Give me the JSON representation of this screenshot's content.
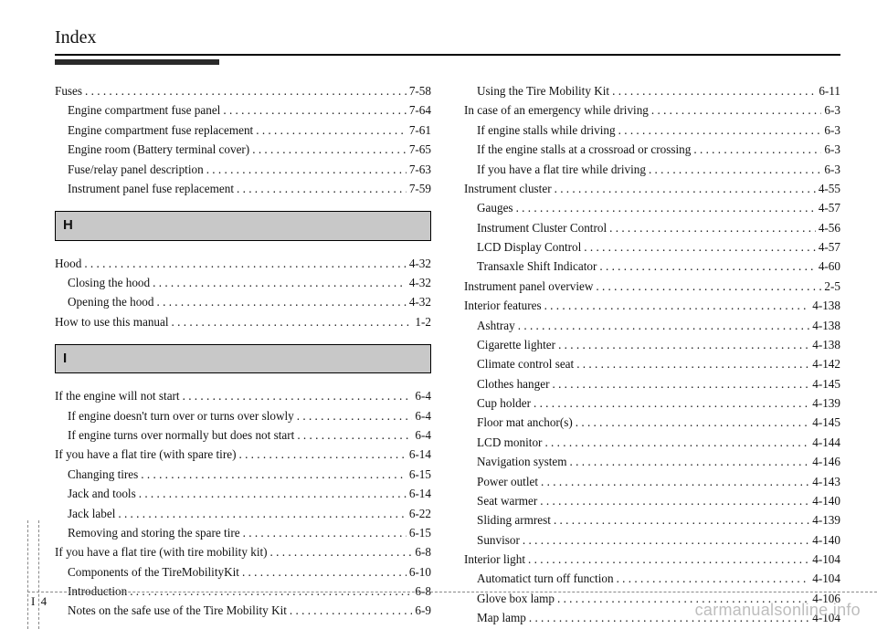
{
  "header": {
    "title": "Index"
  },
  "footer": {
    "chapter": "I",
    "page": "4"
  },
  "watermark": "carmanualsonline.info",
  "left": {
    "block1": [
      {
        "label": "Fuses",
        "page": "7-58",
        "indent": false
      },
      {
        "label": "Engine compartment fuse panel",
        "page": "7-64",
        "indent": true
      },
      {
        "label": "Engine compartment fuse replacement",
        "page": "7-61",
        "indent": true
      },
      {
        "label": "Engine room (Battery terminal cover)",
        "page": "7-65",
        "indent": true
      },
      {
        "label": "Fuse/relay panel description",
        "page": "7-63",
        "indent": true
      },
      {
        "label": "Instrument panel fuse replacement",
        "page": "7-59",
        "indent": true
      }
    ],
    "letterH": "H",
    "block2": [
      {
        "label": "Hood",
        "page": "4-32",
        "indent": false
      },
      {
        "label": "Closing the hood",
        "page": "4-32",
        "indent": true
      },
      {
        "label": "Opening the hood",
        "page": "4-32",
        "indent": true
      },
      {
        "label": "How to use this manual",
        "page": "1-2",
        "indent": false
      }
    ],
    "letterI": "I",
    "block3": [
      {
        "label": "If the engine will not start",
        "page": "6-4",
        "indent": false
      },
      {
        "label": "If engine doesn't turn over or turns over slowly",
        "page": "6-4",
        "indent": true
      },
      {
        "label": "If engine turns over normally but does not start",
        "page": "6-4",
        "indent": true
      },
      {
        "label": "If you have a flat tire (with spare tire)",
        "page": "6-14",
        "indent": false
      },
      {
        "label": "Changing tires",
        "page": "6-15",
        "indent": true
      },
      {
        "label": "Jack and tools",
        "page": "6-14",
        "indent": true
      },
      {
        "label": "Jack label",
        "page": "6-22",
        "indent": true
      },
      {
        "label": "Removing and storing the spare tire",
        "page": "6-15",
        "indent": true
      },
      {
        "label": "If you have a flat tire (with tire mobility kit)",
        "page": "6-8",
        "indent": false
      },
      {
        "label": "Components of the TireMobilityKit",
        "page": "6-10",
        "indent": true
      },
      {
        "label": "Introduction",
        "page": "6-8",
        "indent": true
      },
      {
        "label": "Notes on the safe use of the Tire Mobility Kit",
        "page": "6-9",
        "indent": true
      }
    ]
  },
  "right": [
    {
      "label": "Using the Tire Mobility Kit",
      "page": "6-11",
      "indent": true
    },
    {
      "label": "In case of an emergency while driving",
      "page": "6-3",
      "indent": false
    },
    {
      "label": "If engine stalls while driving",
      "page": "6-3",
      "indent": true
    },
    {
      "label": "If the engine stalls at a crossroad or crossing",
      "page": "6-3",
      "indent": true
    },
    {
      "label": "If you have a flat tire while driving",
      "page": "6-3",
      "indent": true
    },
    {
      "label": "Instrument cluster",
      "page": "4-55",
      "indent": false
    },
    {
      "label": "Gauges",
      "page": "4-57",
      "indent": true
    },
    {
      "label": "Instrument Cluster Control",
      "page": "4-56",
      "indent": true
    },
    {
      "label": "LCD Display Control",
      "page": "4-57",
      "indent": true
    },
    {
      "label": "Transaxle Shift Indicator",
      "page": "4-60",
      "indent": true
    },
    {
      "label": "Instrument panel overview",
      "page": "2-5",
      "indent": false
    },
    {
      "label": "Interior features",
      "page": "4-138",
      "indent": false
    },
    {
      "label": "Ashtray",
      "page": "4-138",
      "indent": true
    },
    {
      "label": "Cigarette lighter",
      "page": "4-138",
      "indent": true
    },
    {
      "label": "Climate control seat",
      "page": "4-142",
      "indent": true
    },
    {
      "label": "Clothes hanger",
      "page": "4-145",
      "indent": true
    },
    {
      "label": "Cup holder",
      "page": "4-139",
      "indent": true
    },
    {
      "label": "Floor mat anchor(s)",
      "page": "4-145",
      "indent": true
    },
    {
      "label": "LCD monitor",
      "page": "4-144",
      "indent": true
    },
    {
      "label": "Navigation system",
      "page": "4-146",
      "indent": true
    },
    {
      "label": "Power outlet",
      "page": "4-143",
      "indent": true
    },
    {
      "label": "Seat warmer",
      "page": "4-140",
      "indent": true
    },
    {
      "label": "Sliding armrest",
      "page": "4-139",
      "indent": true
    },
    {
      "label": "Sunvisor",
      "page": "4-140",
      "indent": true
    },
    {
      "label": "Interior light",
      "page": "4-104",
      "indent": false
    },
    {
      "label": "Automatict turn off function",
      "page": "4-104",
      "indent": true
    },
    {
      "label": "Glove box lamp",
      "page": "4-106",
      "indent": true
    },
    {
      "label": "Map lamp",
      "page": "4-104",
      "indent": true
    }
  ]
}
